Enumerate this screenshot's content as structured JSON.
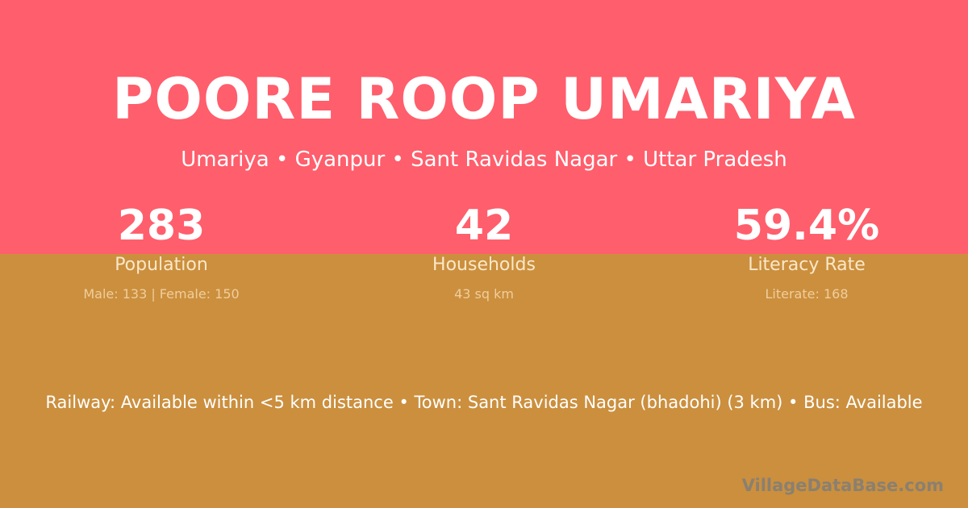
{
  "colors": {
    "top": "#FF5E6C",
    "bottom": "#CB8F3E"
  },
  "title": "POORE ROOP UMARIYA",
  "subtitle": "Umariya • Gyanpur • Sant Ravidas Nagar • Uttar Pradesh",
  "stats": [
    {
      "value": "283",
      "label": "Population",
      "detail": "Male: 133 | Female: 150"
    },
    {
      "value": "42",
      "label": "Households",
      "detail": "43 sq km"
    },
    {
      "value": "59.4%",
      "label": "Literacy Rate",
      "detail": "Literate: 168"
    }
  ],
  "info": "Railway: Available within <5 km distance  •  Town: Sant Ravidas Nagar (bhadohi) (3 km)  •  Bus: Available",
  "watermark": "VillageDataBase.com"
}
